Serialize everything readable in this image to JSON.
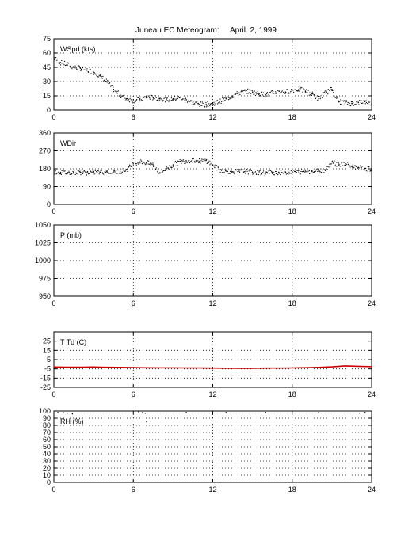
{
  "title": "Juneau EC Meteogram:     April  2, 1999",
  "colors": {
    "axis": "#000000",
    "points": "#000000",
    "temperature": "#cc0000",
    "grid": "#000000"
  },
  "chart_data": [
    {
      "type": "scatter",
      "label": "WSpd (kts)",
      "xlim": [
        0,
        24
      ],
      "xticks": [
        0,
        6,
        12,
        18,
        24
      ],
      "ylim": [
        0,
        75
      ],
      "yticks": [
        0,
        15,
        30,
        45,
        60,
        75
      ],
      "grid": true,
      "series": [
        {
          "x": [
            0,
            0.5,
            1,
            1.5,
            2,
            2.5,
            3,
            3.5,
            4,
            4.5,
            5,
            5.5,
            6,
            6.5,
            7,
            7.5,
            8,
            8.5,
            9,
            9.5,
            10,
            10.5,
            11,
            11.5,
            12,
            12.5,
            13,
            13.5,
            14,
            14.5,
            15,
            15.5,
            16,
            16.5,
            17,
            17.5,
            18,
            18.5,
            19,
            19.5,
            20,
            20.5,
            21,
            21.5,
            22,
            22.5,
            23,
            23.5,
            24
          ],
          "y": [
            55,
            50,
            48,
            45,
            44,
            42,
            40,
            36,
            30,
            22,
            16,
            12,
            10,
            11,
            14,
            13,
            12,
            11,
            12,
            13,
            11,
            8,
            6,
            6,
            7,
            9,
            12,
            15,
            18,
            20,
            19,
            17,
            16,
            18,
            20,
            19,
            21,
            22,
            20,
            17,
            12,
            18,
            22,
            9,
            8,
            7,
            8,
            9,
            7
          ]
        }
      ]
    },
    {
      "type": "scatter",
      "label": "WDir",
      "xlim": [
        0,
        24
      ],
      "xticks": [
        0,
        6,
        12,
        18,
        24
      ],
      "ylim": [
        0,
        360
      ],
      "yticks": [
        0,
        90,
        180,
        270,
        360
      ],
      "grid": true,
      "series": [
        {
          "x": [
            0,
            0.5,
            1,
            1.5,
            2,
            2.5,
            3,
            3.5,
            4,
            4.5,
            5,
            5.5,
            6,
            6.5,
            7,
            7.5,
            8,
            8.5,
            9,
            9.5,
            10,
            10.5,
            11,
            11.5,
            12,
            12.5,
            13,
            13.5,
            14,
            14.5,
            15,
            15.5,
            16,
            16.5,
            17,
            17.5,
            18,
            18.5,
            19,
            19.5,
            20,
            20.5,
            21,
            21.5,
            22,
            22.5,
            23,
            23.5,
            24
          ],
          "y": [
            165,
            162,
            160,
            163,
            162,
            160,
            163,
            162,
            165,
            164,
            166,
            175,
            205,
            215,
            210,
            200,
            160,
            180,
            200,
            215,
            220,
            225,
            218,
            222,
            200,
            175,
            168,
            165,
            168,
            167,
            163,
            160,
            158,
            162,
            160,
            163,
            165,
            164,
            168,
            166,
            170,
            172,
            215,
            200,
            205,
            192,
            187,
            182,
            178
          ]
        }
      ]
    },
    {
      "type": "scatter",
      "label": "P (mb)",
      "xlim": [
        0,
        24
      ],
      "xticks": [
        0,
        6,
        12,
        18,
        24
      ],
      "ylim": [
        950,
        1050
      ],
      "yticks": [
        950,
        975,
        1000,
        1025,
        1050
      ],
      "grid": true,
      "series": []
    },
    {
      "type": "line",
      "label": "T Td (C)",
      "xlim": [
        0,
        24
      ],
      "xticks": [
        0,
        6,
        12,
        18,
        24
      ],
      "ylim": [
        -25,
        35
      ],
      "yticks": [
        -25,
        -15,
        -5,
        5,
        15,
        25
      ],
      "grid": true,
      "series": [
        {
          "x": [
            0,
            1,
            2,
            3,
            4,
            5,
            6,
            7,
            8,
            9,
            10,
            11,
            12,
            13,
            14,
            15,
            16,
            17,
            18,
            19,
            20,
            21,
            22,
            23,
            24
          ],
          "y": [
            -3.0,
            -3.2,
            -3.2,
            -3.0,
            -3.3,
            -3.4,
            -3.6,
            -3.8,
            -3.9,
            -3.9,
            -4.0,
            -4.0,
            -4.2,
            -4.3,
            -4.4,
            -4.4,
            -4.2,
            -4.1,
            -4.0,
            -3.7,
            -3.4,
            -2.8,
            -1.8,
            -2.2,
            -2.6
          ]
        }
      ]
    },
    {
      "type": "scatter",
      "label": "RH (%)",
      "xlim": [
        0,
        24
      ],
      "xticks": [
        0,
        6,
        12,
        18,
        24
      ],
      "ylim": [
        0,
        100
      ],
      "yticks": [
        0,
        10,
        20,
        30,
        40,
        50,
        60,
        70,
        80,
        90,
        100
      ],
      "grid": true,
      "series": [
        {
          "x": [
            0.3,
            0.7,
            1.0,
            1.4,
            6.4,
            6.7,
            6.9,
            7.0,
            10,
            13,
            16,
            20,
            23.1,
            23.5
          ],
          "y": [
            98,
            98,
            97,
            96,
            99,
            98,
            97,
            85,
            98,
            98,
            98,
            98,
            97,
            98
          ]
        }
      ]
    }
  ]
}
